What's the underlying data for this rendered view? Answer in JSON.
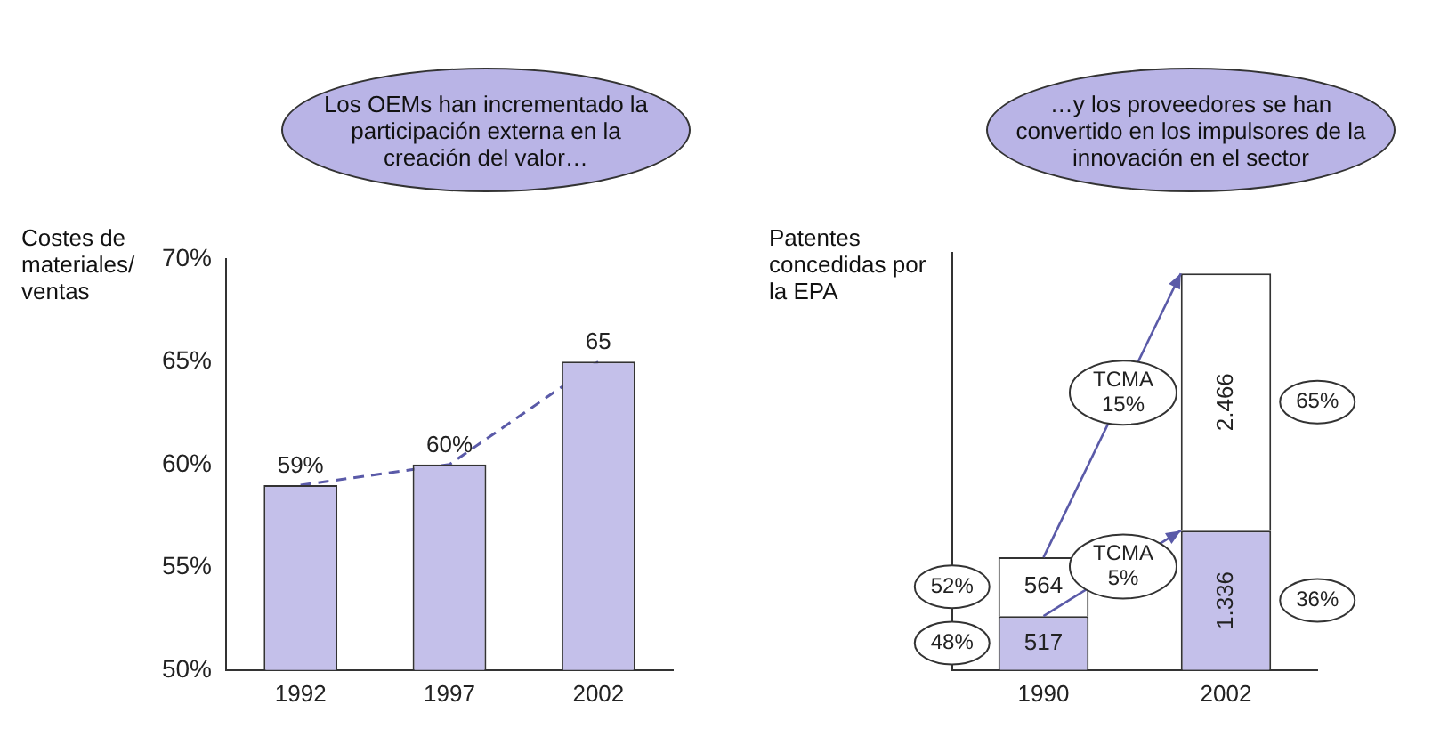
{
  "chart_data": [
    {
      "type": "bar",
      "title": "Los OEMs han incrementado la participación externa en la creación del valor…",
      "ylabel": "Costes de materiales/ ventas",
      "categories": [
        "1992",
        "1997",
        "2002"
      ],
      "series": [
        {
          "color": "#c4c0ea",
          "values": [
            59,
            60,
            65
          ],
          "value_labels": [
            "59%",
            "60%",
            "65"
          ]
        },
        {
          "type": "line",
          "color": "#5a5aa8",
          "values": [
            59,
            60,
            65
          ],
          "line_style": "dashed",
          "marker": "none"
        }
      ],
      "ylim": [
        50,
        70
      ],
      "yticks": [
        {
          "value": 50,
          "label": "50%"
        },
        {
          "value": 55,
          "label": "55%"
        },
        {
          "value": 60,
          "label": "60%"
        },
        {
          "value": 65,
          "label": "65%"
        },
        {
          "value": 70,
          "label": "70%"
        }
      ],
      "grid": false,
      "legend": false
    },
    {
      "type": "bar",
      "stacked": true,
      "title": "…y los proveedores se han convertido en los impulsores de la innovación en el sector",
      "ylabel": "Patentes concedidas por la EPA",
      "categories": [
        "1990",
        "2002"
      ],
      "series": [
        {
          "color": "#c4c0ea",
          "values": [
            517,
            1336
          ],
          "value_labels": [
            "517",
            "1.336"
          ]
        },
        {
          "color": "#ffffff",
          "values": [
            564,
            2466
          ],
          "value_labels": [
            "564",
            "2.466"
          ]
        }
      ],
      "annotations": [
        "48%",
        "52%",
        "36%",
        "65%",
        "TCMA 15%",
        "TCMA 5%"
      ],
      "tick_labels": "x",
      "grid": false,
      "legend": false
    }
  ]
}
